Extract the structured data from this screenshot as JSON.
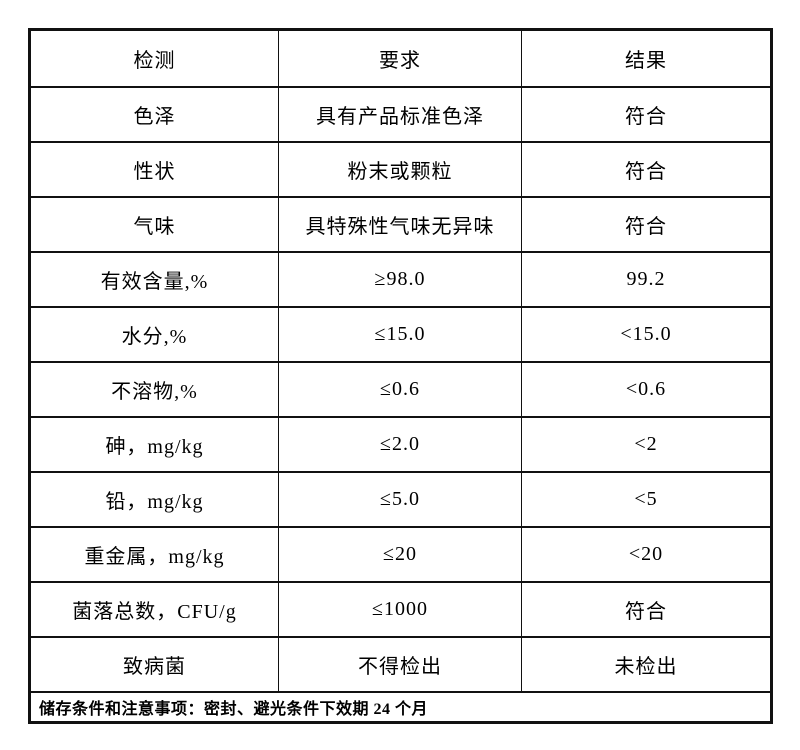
{
  "table": {
    "headers": {
      "test": "检测",
      "requirement": "要求",
      "result": "结果"
    },
    "rows": [
      {
        "test": "色泽",
        "requirement": "具有产品标准色泽",
        "result": "符合"
      },
      {
        "test": "性状",
        "requirement": "粉末或颗粒",
        "result": "符合"
      },
      {
        "test": "气味",
        "requirement": "具特殊性气味无异味",
        "result": "符合"
      },
      {
        "test": "有效含量,%",
        "requirement": "≥98.0",
        "result": "99.2"
      },
      {
        "test": "水分,%",
        "requirement": "≤15.0",
        "result": "<15.0"
      },
      {
        "test": "不溶物,%",
        "requirement": "≤0.6",
        "result": "<0.6"
      },
      {
        "test": "砷，mg/kg",
        "requirement": "≤2.0",
        "result": "<2"
      },
      {
        "test": "铅，mg/kg",
        "requirement": "≤5.0",
        "result": "<5"
      },
      {
        "test": "重金属，mg/kg",
        "requirement": "≤20",
        "result": "<20"
      },
      {
        "test": "菌落总数，CFU/g",
        "requirement": "≤1000",
        "result": "符合"
      },
      {
        "test": "致病菌",
        "requirement": "不得检出",
        "result": "未检出"
      }
    ],
    "footer_note": "储存条件和注意事项：密封、避光条件下效期 24 个月"
  },
  "colors": {
    "border": "#111111",
    "text": "#000000",
    "background": "#ffffff"
  }
}
